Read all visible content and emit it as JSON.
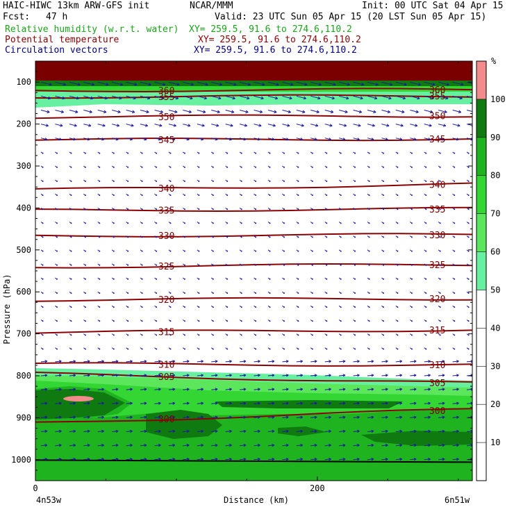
{
  "header": {
    "model": "HAIC-HIWC 13km ARW-GFS init",
    "center": "NCAR/MMM",
    "init": "Init: 00 UTC Sat 04 Apr 15",
    "fcst_label": "Fcst:",
    "fcst_value": "47 h",
    "valid": "Valid: 23 UTC Sun 05 Apr 15 (20 LST Sun 05 Apr 15)",
    "fields": [
      {
        "name": "Relative humidity (w.r.t. water)",
        "xy": "XY= 259.5, 91.6 to 274.6,110.2",
        "color": "#1aa31a"
      },
      {
        "name": "Potential temperature",
        "xy": "XY= 259.5, 91.6 to 274.6,110.2",
        "color": "#8b0000"
      },
      {
        "name": "Circulation vectors",
        "xy": "XY= 259.5, 91.6 to 274.6,110.2",
        "color": "#000080"
      }
    ]
  },
  "chart_data": {
    "type": "cross-section",
    "xlabel": "Distance (km)",
    "ylabel": "Pressure (hPa)",
    "xlim": [
      0,
      310
    ],
    "ylim": [
      1050,
      50
    ],
    "x_ticks": [
      0,
      200
    ],
    "y_ticks": [
      100,
      200,
      300,
      400,
      500,
      600,
      700,
      800,
      900,
      1000
    ],
    "left_endpoint": "4n53w",
    "right_endpoint": "6n51w",
    "colorbar": {
      "unit": "%",
      "levels": [
        10,
        20,
        30,
        40,
        50,
        60,
        70,
        80,
        90,
        100
      ],
      "colors": [
        {
          "range": [
            0,
            50
          ],
          "color": "#ffffff"
        },
        {
          "range": [
            50,
            60
          ],
          "color": "#66f0a0"
        },
        {
          "range": [
            60,
            70
          ],
          "color": "#5ce65c"
        },
        {
          "range": [
            70,
            80
          ],
          "color": "#33d633"
        },
        {
          "range": [
            80,
            90
          ],
          "color": "#1fb31f"
        },
        {
          "range": [
            90,
            100
          ],
          "color": "#0f7a0f"
        },
        {
          "range": [
            100,
            110
          ],
          "color": "#f28c8c"
        }
      ]
    },
    "isentropes": [
      {
        "theta": 360,
        "p_left": 120,
        "p_right": 118
      },
      {
        "theta": 355,
        "p_left": 135,
        "p_right": 133
      },
      {
        "theta": 350,
        "p_left": 183,
        "p_right": 180
      },
      {
        "theta": 345,
        "p_left": 238,
        "p_right": 235
      },
      {
        "theta": 340,
        "p_left": 357,
        "p_right": 343
      },
      {
        "theta": 335,
        "p_left": 406,
        "p_right": 402
      },
      {
        "theta": 330,
        "p_left": 466,
        "p_right": 464
      },
      {
        "theta": 325,
        "p_left": 540,
        "p_right": 535
      },
      {
        "theta": 320,
        "p_left": 619,
        "p_right": 616
      },
      {
        "theta": 315,
        "p_left": 697,
        "p_right": 690
      },
      {
        "theta": 310,
        "p_left": 772,
        "p_right": 774
      },
      {
        "theta": 305,
        "p_left": 795,
        "p_right": 818
      },
      {
        "theta": 300,
        "p_left": 912,
        "p_right": 880
      }
    ]
  }
}
